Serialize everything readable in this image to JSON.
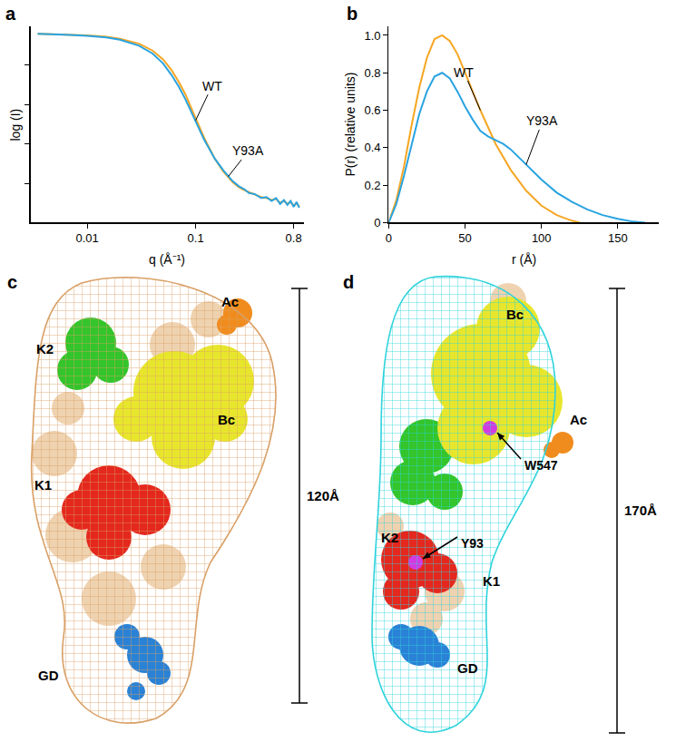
{
  "chart_data": [
    {
      "type": "line",
      "title": "a",
      "x_label": "q (Å⁻¹)",
      "y_label": "log (I)",
      "log": "x",
      "tick_labels": "x",
      "xlim": [
        0.003,
        1
      ],
      "xticks": [
        0.01,
        0.1,
        0.8
      ],
      "ylim": [
        0,
        10
      ],
      "yticks": [
        2,
        4,
        6,
        8
      ],
      "series": [
        {
          "name": "WT",
          "color": "#f5a623",
          "x": [
            0.0035,
            0.005,
            0.007,
            0.01,
            0.015,
            0.02,
            0.03,
            0.04,
            0.05,
            0.06,
            0.07,
            0.08,
            0.1,
            0.12,
            0.15,
            0.18,
            0.22,
            0.25,
            0.28,
            0.31,
            0.35,
            0.4,
            0.45,
            0.5,
            0.55,
            0.6,
            0.65,
            0.7,
            0.75,
            0.8,
            0.85,
            0.9
          ],
          "values": [
            9.6,
            9.58,
            9.56,
            9.52,
            9.45,
            9.35,
            9.1,
            8.75,
            8.3,
            7.75,
            7.15,
            6.55,
            5.3,
            4.3,
            3.25,
            2.6,
            2.05,
            1.8,
            1.65,
            1.55,
            1.4,
            1.3,
            1.25,
            1.15,
            1.2,
            1.0,
            1.1,
            0.95,
            1.05,
            0.85,
            1.0,
            0.8
          ]
        },
        {
          "name": "Y93A",
          "color": "#29a3e0",
          "x": [
            0.0035,
            0.005,
            0.007,
            0.01,
            0.015,
            0.02,
            0.03,
            0.04,
            0.05,
            0.06,
            0.07,
            0.08,
            0.1,
            0.12,
            0.15,
            0.18,
            0.22,
            0.25,
            0.28,
            0.31,
            0.35,
            0.4,
            0.45,
            0.5,
            0.55,
            0.6,
            0.65,
            0.7,
            0.75,
            0.8,
            0.85,
            0.9
          ],
          "values": [
            9.6,
            9.58,
            9.55,
            9.5,
            9.42,
            9.3,
            9.0,
            8.6,
            8.1,
            7.5,
            6.9,
            6.3,
            5.1,
            4.2,
            3.25,
            2.65,
            2.1,
            1.85,
            1.7,
            1.5,
            1.45,
            1.25,
            1.3,
            1.1,
            1.25,
            0.95,
            1.15,
            0.9,
            1.1,
            0.8,
            1.05,
            0.75
          ]
        }
      ],
      "annotations": [
        {
          "text": "WT",
          "x": 0.1,
          "y": 5.2
        },
        {
          "text": "Y93A",
          "x": 0.2,
          "y": 2.35
        }
      ]
    },
    {
      "type": "line",
      "title": "b",
      "x_label": "r (Å)",
      "y_label": "P(r) (relative units)",
      "xlim": [
        0,
        177
      ],
      "xticks": [
        0,
        50,
        100,
        150
      ],
      "ylim": [
        0,
        1.05
      ],
      "yticks": [
        0,
        0.2,
        0.4,
        0.6,
        0.8,
        {
          "value": 1,
          "label": "1.0"
        }
      ],
      "series": [
        {
          "name": "WT",
          "color": "#f5a623",
          "x": [
            0,
            5,
            10,
            15,
            20,
            25,
            30,
            35,
            40,
            45,
            50,
            55,
            60,
            70,
            80,
            90,
            100,
            110,
            120,
            125
          ],
          "values": [
            0,
            0.12,
            0.3,
            0.52,
            0.72,
            0.88,
            0.98,
            1.0,
            0.97,
            0.9,
            0.8,
            0.7,
            0.6,
            0.42,
            0.28,
            0.17,
            0.09,
            0.04,
            0.01,
            0
          ]
        },
        {
          "name": "Y93A",
          "color": "#29a3e0",
          "x": [
            0,
            5,
            10,
            15,
            20,
            25,
            30,
            35,
            40,
            45,
            50,
            55,
            60,
            65,
            70,
            75,
            80,
            85,
            90,
            95,
            100,
            110,
            120,
            130,
            140,
            150,
            160,
            168
          ],
          "values": [
            0,
            0.1,
            0.25,
            0.42,
            0.58,
            0.7,
            0.78,
            0.8,
            0.77,
            0.7,
            0.62,
            0.55,
            0.49,
            0.46,
            0.44,
            0.42,
            0.39,
            0.35,
            0.31,
            0.27,
            0.23,
            0.16,
            0.11,
            0.07,
            0.04,
            0.02,
            0.005,
            0
          ]
        }
      ],
      "annotations": [
        {
          "text": "WT",
          "x": 60,
          "y": 0.6
        },
        {
          "text": "Y93A",
          "x": 90,
          "y": 0.31
        }
      ]
    }
  ],
  "diagrams": [
    {
      "title": "c",
      "envelope_color": "#d9a066",
      "linker_color": "#efd2b0",
      "scale_label": "120Å",
      "domains": [
        {
          "label": "K2",
          "color": "#33c52b"
        },
        {
          "label": "Bc",
          "color": "#e8e62c"
        },
        {
          "label": "Ac",
          "color": "#f08c1e"
        },
        {
          "label": "K1",
          "color": "#e5281e"
        },
        {
          "label": "GD",
          "color": "#2a82d6"
        }
      ]
    },
    {
      "title": "d",
      "envelope_color": "#2fd3dc",
      "linker_color": "#efd2b0",
      "scale_label": "170Å",
      "domains": [
        {
          "label": "K2",
          "color": "#33c52b"
        },
        {
          "label": "Bc",
          "color": "#e8e62c"
        },
        {
          "label": "Ac",
          "color": "#f08c1e"
        },
        {
          "label": "K1",
          "color": "#e5281e"
        },
        {
          "label": "GD",
          "color": "#2a82d6"
        }
      ],
      "sites": [
        {
          "label": "W547",
          "color": "#d23be0"
        },
        {
          "label": "Y93",
          "color": "#d23be0"
        }
      ]
    }
  ]
}
